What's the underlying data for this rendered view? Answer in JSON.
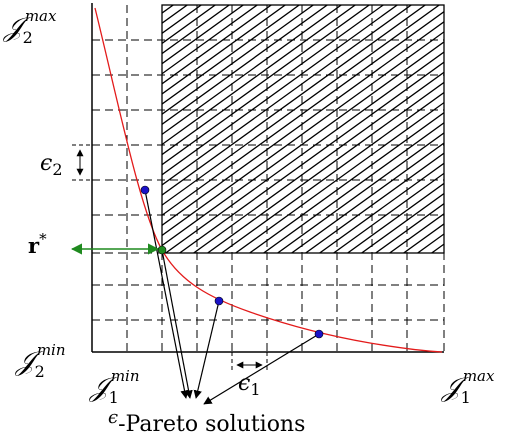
{
  "axes": {
    "y_top": {
      "main": "𝒥",
      "sub": "2",
      "sup": "max"
    },
    "y_bottom": {
      "main": "𝒥",
      "sub": "2",
      "sup": "min"
    },
    "x_left": {
      "main": "𝒥",
      "sub": "1",
      "sup": "min"
    },
    "x_right": {
      "main": "𝒥",
      "sub": "1",
      "sup": "max"
    }
  },
  "labels": {
    "eps2": {
      "main": "ϵ",
      "sub": "2"
    },
    "eps1": {
      "main": "ϵ",
      "sub": "1"
    },
    "reference": {
      "main": "r",
      "sup": "*"
    },
    "caption_eps": "ϵ",
    "caption_text": "-Pareto solutions"
  },
  "colors": {
    "curve": "#e31b1b",
    "solution_points": "#1a12c8",
    "reference_point": "#1f8a1f",
    "reference_arrow": "#1f8a1f",
    "lines": "#000000"
  }
}
